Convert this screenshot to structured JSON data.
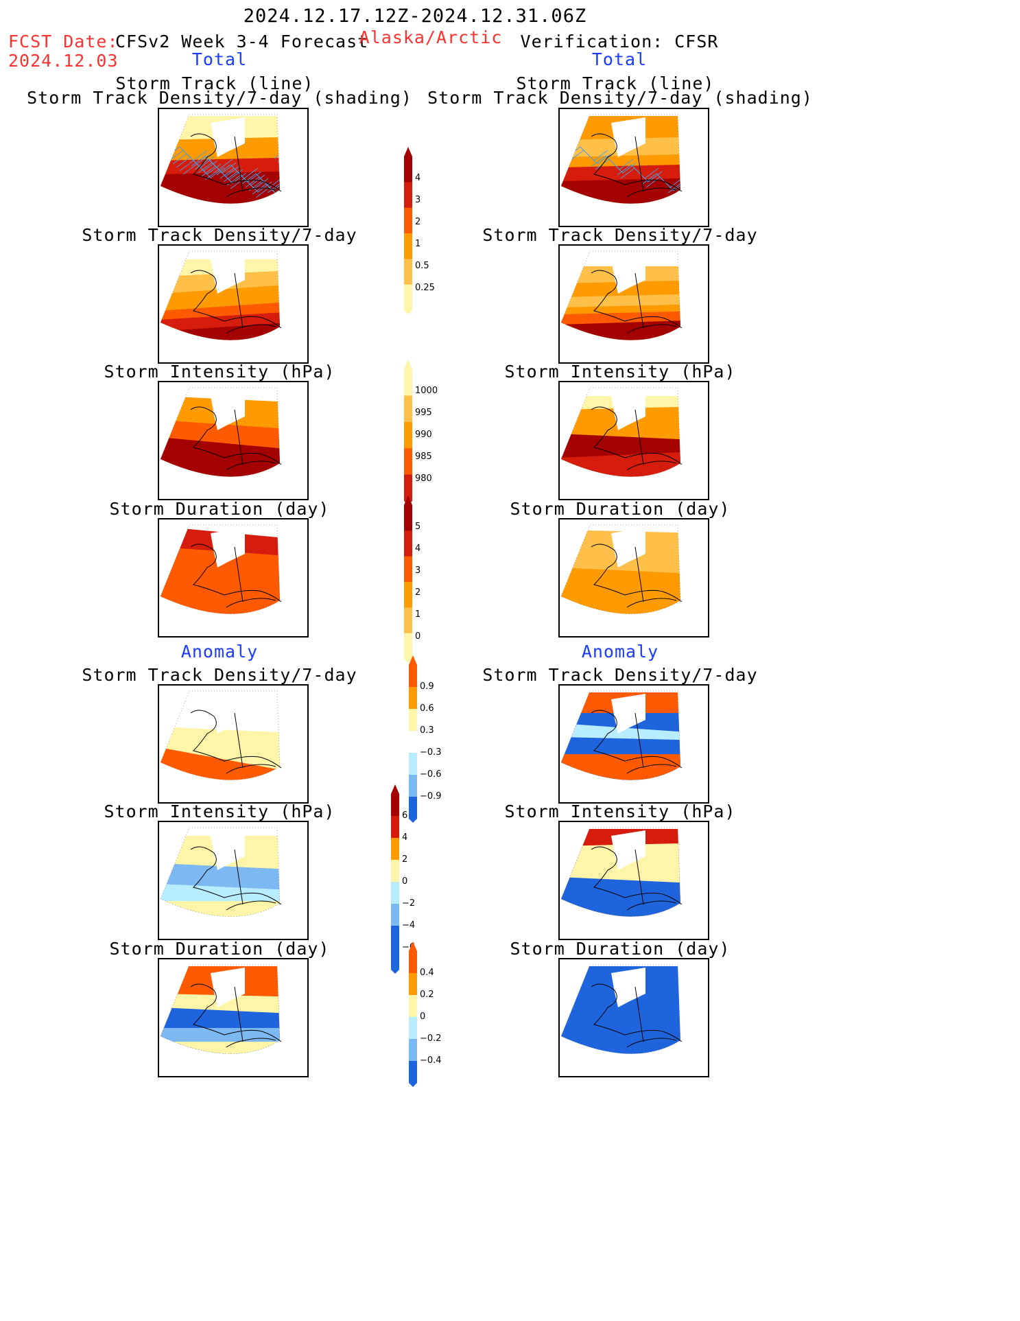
{
  "header": {
    "valid_period": "2024.12.17.12Z-2024.12.31.06Z",
    "fcst_date_label": "FCST Date:",
    "fcst_date_value": "2024.12.03",
    "forecast_title": "CFSv2 Week 3-4 Forecast",
    "region": "Alaska/Arctic",
    "verification_title": "Verification: CFSR"
  },
  "columns": {
    "left_section_total": "Total",
    "right_section_total": "Total",
    "left_section_anomaly": "Anomaly",
    "right_section_anomaly": "Anomaly"
  },
  "panel_titles": {
    "track_line": "Storm Track (line)",
    "track_shading": "Storm Track Density/7-day (shading)",
    "density": "Storm Track Density/7-day",
    "intensity": "Storm Intensity (hPa)",
    "duration": "Storm Duration (day)"
  },
  "colorbars": {
    "density_total": [
      "4",
      "3",
      "2",
      "1",
      "0.5",
      "0.25"
    ],
    "intensity_total": [
      "1000",
      "995",
      "990",
      "985",
      "980"
    ],
    "duration_total": [
      "5",
      "4",
      "3",
      "2",
      "1",
      "0"
    ],
    "density_anom": [
      "0.9",
      "0.6",
      "0.3",
      "−0.3",
      "−0.6",
      "−0.9"
    ],
    "intensity_anom": [
      "6",
      "4",
      "2",
      "0",
      "−2",
      "−4",
      "−6"
    ],
    "duration_anom": [
      "0.4",
      "0.2",
      "0",
      "−0.2",
      "−0.4"
    ]
  },
  "colors": {
    "title_red": "#ff3030",
    "title_blue": "#1a3cff",
    "dark_red": "#a50000",
    "red": "#d61c0c",
    "orange_red": "#ff5a00",
    "orange": "#ff9a00",
    "light_orange": "#ffc04a",
    "light_yellow": "#fff5a8",
    "light_blue": "#b8ecff",
    "mid_blue": "#7cb8f2",
    "blue": "#1e64dc",
    "track_line": "#4a9ee0"
  }
}
